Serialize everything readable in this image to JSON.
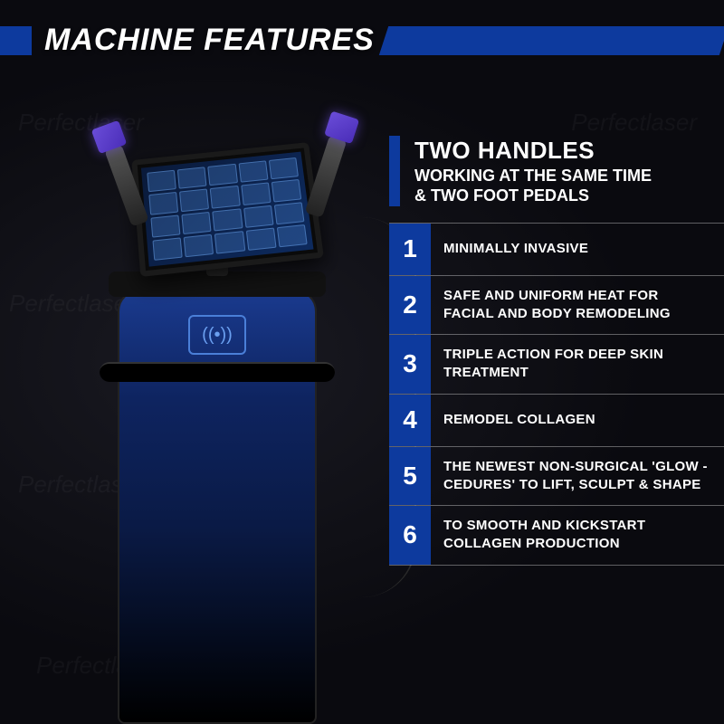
{
  "colors": {
    "accent": "#0d3a9e",
    "bg": "#0a0a0f",
    "text": "#ffffff",
    "divider": "rgba(255,255,255,.35)"
  },
  "header": {
    "title": "MACHINE FEATURES"
  },
  "subtitle": {
    "line1": "TWO HANDLES",
    "line2": "WORKING AT THE SAME TIME",
    "line3": "& TWO FOOT PEDALS"
  },
  "features": [
    {
      "num": "1",
      "text": "MINIMALLY INVASIVE"
    },
    {
      "num": "2",
      "text": "SAFE AND UNIFORM HEAT FOR FACIAL AND BODY REMODELING"
    },
    {
      "num": "3",
      "text": "TRIPLE ACTION FOR DEEP SKIN TREATMENT"
    },
    {
      "num": "4",
      "text": "REMODEL COLLAGEN"
    },
    {
      "num": "5",
      "text": "THE NEWEST NON-SURGICAL 'GLOW -CEDURES' TO LIFT, SCULPT & SHAPE"
    },
    {
      "num": "6",
      "text": "TO SMOOTH AND KICKSTART COLLAGEN PRODUCTION"
    }
  ],
  "machine": {
    "nfc_icon": "((•))"
  },
  "watermark_text": "Perfectlaser",
  "typography": {
    "header_size": 34,
    "subtitle_line1_size": 26,
    "subtitle_rest_size": 18,
    "feature_num_size": 28,
    "feature_text_size": 15
  }
}
